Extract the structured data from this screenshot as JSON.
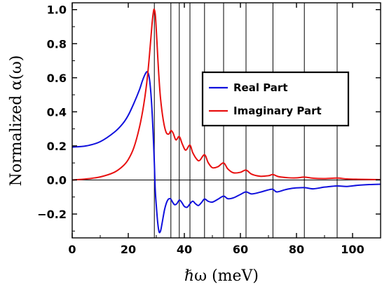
{
  "chart_data": {
    "type": "line",
    "title": "",
    "xlabel": "ℏω (meV)",
    "ylabel": "Normalized α(ω)",
    "xlim": [
      0,
      110
    ],
    "ylim": [
      -0.34,
      1.04
    ],
    "x_ticks": [
      "0",
      "20",
      "40",
      "60",
      "80",
      "100"
    ],
    "y_ticks": [
      "−0.2",
      "0.0",
      "0.2",
      "0.4",
      "0.6",
      "0.8",
      "1.0"
    ],
    "grid": false,
    "legend_position": "right-center",
    "zero_line": 0,
    "vertical_lines_x": [
      29.3,
      35.2,
      38.2,
      42.0,
      47.2,
      54.0,
      62.0,
      71.6,
      82.8,
      94.5
    ],
    "series": [
      {
        "name": "Real Part",
        "color": "#1010dd",
        "x": [
          0,
          5,
          10,
          15,
          18,
          20,
          22,
          24,
          25,
          26,
          26.8,
          27.5,
          28.2,
          28.8,
          29.3,
          29.6,
          30.0,
          30.5,
          31.0,
          31.5,
          32.0,
          33.0,
          34.0,
          35.0,
          35.8,
          36.5,
          37.3,
          38.2,
          39.0,
          40.0,
          41.0,
          42.0,
          43.0,
          44.0,
          45.0,
          46.0,
          47.2,
          48.5,
          50.0,
          52.0,
          54.0,
          55.5,
          57.5,
          60.0,
          62.0,
          64.0,
          67.0,
          70.0,
          71.6,
          73.0,
          76.0,
          79.0,
          82.8,
          86.0,
          90.0,
          94.5,
          98.0,
          102.0,
          106.0,
          110.0
        ],
        "y": [
          0.193,
          0.2,
          0.225,
          0.28,
          0.33,
          0.38,
          0.45,
          0.53,
          0.58,
          0.62,
          0.635,
          0.6,
          0.48,
          0.3,
          0.1,
          -0.05,
          -0.15,
          -0.25,
          -0.305,
          -0.3,
          -0.26,
          -0.17,
          -0.12,
          -0.11,
          -0.13,
          -0.145,
          -0.14,
          -0.118,
          -0.13,
          -0.155,
          -0.16,
          -0.14,
          -0.125,
          -0.14,
          -0.15,
          -0.135,
          -0.112,
          -0.125,
          -0.13,
          -0.113,
          -0.095,
          -0.11,
          -0.105,
          -0.085,
          -0.07,
          -0.082,
          -0.072,
          -0.058,
          -0.055,
          -0.07,
          -0.057,
          -0.048,
          -0.045,
          -0.052,
          -0.042,
          -0.035,
          -0.038,
          -0.031,
          -0.027,
          -0.025
        ]
      },
      {
        "name": "Imaginary Part",
        "color": "#e81010",
        "x": [
          0,
          5,
          10,
          15,
          18,
          20,
          22,
          24,
          25.5,
          26.8,
          27.8,
          28.5,
          29.0,
          29.3,
          29.7,
          30.2,
          30.8,
          31.5,
          32.5,
          33.5,
          34.5,
          35.2,
          36.0,
          37.0,
          38.2,
          39.3,
          40.5,
          42.0,
          43.0,
          44.5,
          45.5,
          47.2,
          48.5,
          50.0,
          52.0,
          54.0,
          55.5,
          57.5,
          60.0,
          62.0,
          64.0,
          67.0,
          70.0,
          71.6,
          73.5,
          77.0,
          80.0,
          82.8,
          86.0,
          90.0,
          94.5,
          98.0,
          102.0,
          106.0,
          110.0
        ],
        "y": [
          0.0,
          0.006,
          0.018,
          0.045,
          0.08,
          0.12,
          0.19,
          0.31,
          0.44,
          0.6,
          0.78,
          0.92,
          0.99,
          1.0,
          0.96,
          0.82,
          0.64,
          0.48,
          0.35,
          0.28,
          0.27,
          0.29,
          0.275,
          0.235,
          0.255,
          0.21,
          0.175,
          0.205,
          0.16,
          0.12,
          0.115,
          0.148,
          0.102,
          0.072,
          0.078,
          0.1,
          0.065,
          0.042,
          0.045,
          0.058,
          0.034,
          0.022,
          0.025,
          0.032,
          0.02,
          0.013,
          0.012,
          0.017,
          0.01,
          0.008,
          0.011,
          0.006,
          0.004,
          0.003,
          0.002
        ]
      }
    ]
  }
}
